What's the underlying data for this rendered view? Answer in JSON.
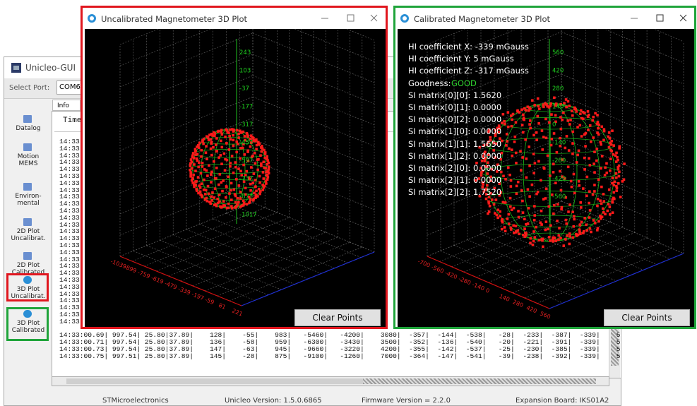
{
  "main_window": {
    "title": "Unicleo-GUI",
    "select_port_label": "Select Port:",
    "port": "COM6",
    "tab": "Info",
    "time_header": "Time",
    "sidebar": [
      "Datalog",
      "Motion\nMEMS",
      "Environ-\nmental",
      "2D Plot\nUncalibrat.",
      "2D Plot\nCalibrated",
      "3D Plot\nUncalibrat.",
      "3D Plot\nCalibrated"
    ],
    "log_rows_partial": [
      "14:33:",
      "14:33:",
      "14:33:",
      "14:33:",
      "14:33:",
      "14:33:",
      "14:33:",
      "14:33:",
      "14:33:",
      "14:33:",
      "14:33:",
      "14:33:",
      "14:33:",
      "14:33:",
      "14:33:",
      "14:33:",
      "14:33:",
      "14:33:",
      "14:33:",
      "14:33:",
      "14:33:",
      "14:33:",
      "14:33:",
      "14:33:",
      "14:33:",
      "14:33:",
      "14:33:"
    ],
    "log_rows": [
      "14:33:00.69| 997.54| 25.80|37.89|    128|    -55|    983|   -5460|   -4200|    3080|  -357|  -144|  -538|   -28|  -233|  -387|  -339|    5|",
      "14:33:00.71| 997.54| 25.80|37.89|    136|    -58|    959|   -6300|   -3430|    3500|  -352|  -136|  -540|   -20|  -221|  -391|  -339|    5|",
      "14:33:00.73| 997.54| 25.80|37.89|    147|    -63|    945|   -9660|   -3220|    4200|  -355|  -142|  -537|   -25|  -230|  -385|  -339|    5|",
      "14:33:00.75| 997.51| 25.80|37.89|    145|    -28|    875|   -9100|   -1260|    7000|  -364|  -147|  -541|   -39|  -238|  -392|  -339|    5|"
    ],
    "status": [
      "STMicroelectronics",
      "Unicleo Version:  1.5.0.6865",
      "Firmware Version = 2.2.0",
      "Expansion Board: IKS01A2"
    ]
  },
  "uncal_window": {
    "title": "Uncalibrated Magnetometer 3D Plot",
    "z_labels": [
      "243",
      "103",
      "-37",
      "-177",
      "-317",
      "-457",
      "-597",
      "-737",
      "-877",
      "-1017"
    ],
    "x_labels": [
      "-1039",
      "-899",
      "-759",
      "-619",
      "-479",
      "-339",
      "-197",
      "-59",
      "81",
      "221"
    ],
    "button": "Clear Points"
  },
  "cal_window": {
    "title": "Calibrated Magnetometer 3D Plot",
    "hi": [
      "HI coefficient X: -339 mGauss",
      "HI coefficient Y: 5 mGauss",
      "HI coefficient Z: -317 mGauss"
    ],
    "goodness_label": "Goodness:",
    "goodness_value": "GOOD",
    "si": [
      "SI matrix[0][0]: 1.5620",
      "SI matrix[0][1]: 0.0000",
      "SI matrix[0][2]: 0.0000",
      "SI matrix[1][0]: 0.0000",
      "SI matrix[1][1]: 1.5650",
      "SI matrix[1][2]: 0.0000",
      "SI matrix[2][0]: 0.0000",
      "SI matrix[2][1]: 0.0000",
      "SI matrix[2][2]: 1.7520"
    ],
    "z_labels": [
      "560",
      "420",
      "280",
      "140",
      "0",
      "-140",
      "-280",
      "-420",
      "-560"
    ],
    "x_labels": [
      "-700",
      "-560",
      "-420",
      "-280",
      "-140",
      "0",
      "140",
      "280",
      "420",
      "560"
    ],
    "button": "Clear Points"
  }
}
